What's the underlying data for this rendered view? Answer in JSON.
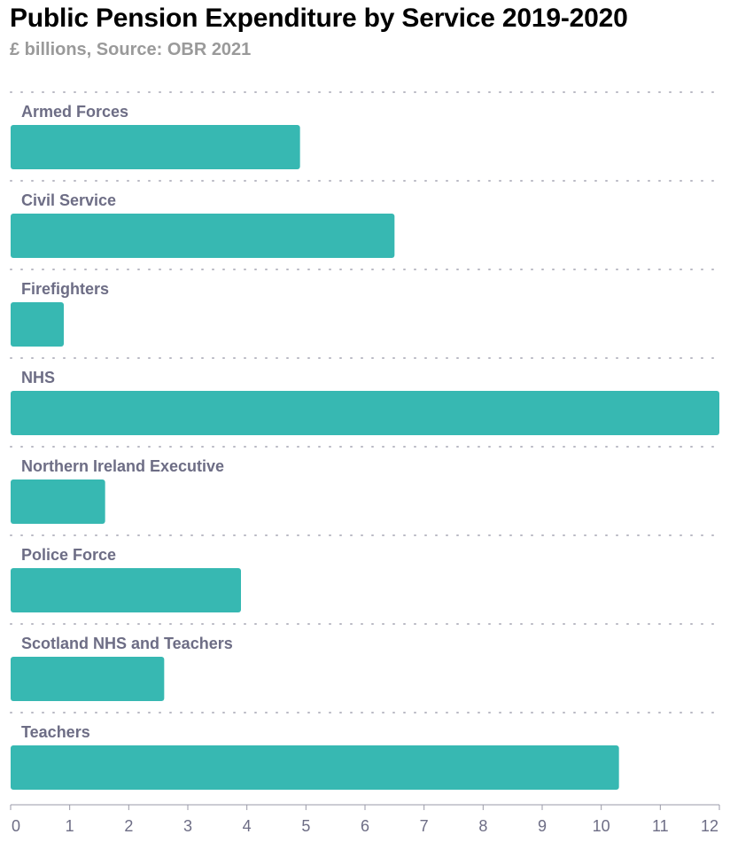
{
  "title": "Public Pension Expenditure by Service 2019-2020",
  "subtitle": "£ billions, Source: OBR 2021",
  "colors": {
    "bar": "#37b8b2",
    "label": "#6d6d85",
    "tick": "#6d6d85",
    "grid": "#b9b9c4",
    "axis": "#9a9aa8"
  },
  "chart_data": {
    "type": "bar",
    "orientation": "horizontal",
    "categories": [
      "Armed Forces",
      "Civil Service",
      "Firefighters",
      "NHS",
      "Northern Ireland Executive",
      "Police Force",
      "Scotland NHS and Teachers",
      "Teachers"
    ],
    "values": [
      4.9,
      6.5,
      0.9,
      12.0,
      1.6,
      3.9,
      2.6,
      10.3
    ],
    "xlim": [
      0,
      12
    ],
    "xticks": [
      "0",
      "1",
      "2",
      "3",
      "4",
      "5",
      "6",
      "7",
      "8",
      "9",
      "10",
      "11",
      "12"
    ],
    "grid": true
  }
}
